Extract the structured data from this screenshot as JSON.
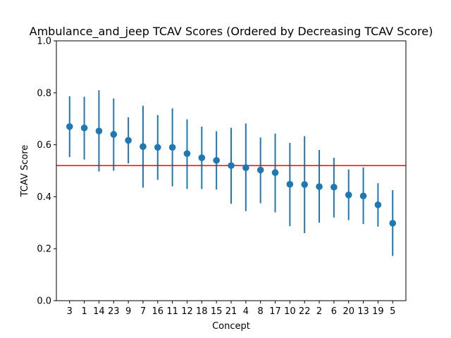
{
  "chart_data": {
    "type": "scatter",
    "title": "Ambulance_and_jeep TCAV Scores (Ordered by Decreasing TCAV Score)",
    "xlabel": "Concept",
    "ylabel": "TCAV Score",
    "ylim": [
      0.0,
      1.0
    ],
    "yticks": [
      "0.0",
      "0.2",
      "0.4",
      "0.6",
      "0.8",
      "1.0"
    ],
    "grid": false,
    "categories": [
      "3",
      "1",
      "14",
      "23",
      "9",
      "7",
      "16",
      "11",
      "12",
      "18",
      "15",
      "21",
      "4",
      "8",
      "17",
      "10",
      "22",
      "2",
      "6",
      "20",
      "13",
      "19",
      "5"
    ],
    "values": [
      0.67,
      0.665,
      0.653,
      0.64,
      0.617,
      0.593,
      0.59,
      0.59,
      0.566,
      0.55,
      0.54,
      0.52,
      0.512,
      0.503,
      0.493,
      0.448,
      0.447,
      0.439,
      0.437,
      0.407,
      0.403,
      0.369,
      0.298
    ],
    "lower": [
      0.553,
      0.543,
      0.497,
      0.5,
      0.528,
      0.435,
      0.465,
      0.44,
      0.43,
      0.43,
      0.428,
      0.373,
      0.345,
      0.375,
      0.34,
      0.287,
      0.26,
      0.3,
      0.32,
      0.31,
      0.295,
      0.285,
      0.172
    ],
    "upper": [
      0.787,
      0.785,
      0.81,
      0.778,
      0.706,
      0.75,
      0.714,
      0.74,
      0.698,
      0.67,
      0.652,
      0.665,
      0.682,
      0.628,
      0.643,
      0.607,
      0.633,
      0.58,
      0.55,
      0.505,
      0.513,
      0.452,
      0.425
    ],
    "reference_line": 0.52,
    "colors": {
      "points": "#1f77b4",
      "reference_line": "#ff0000"
    }
  }
}
